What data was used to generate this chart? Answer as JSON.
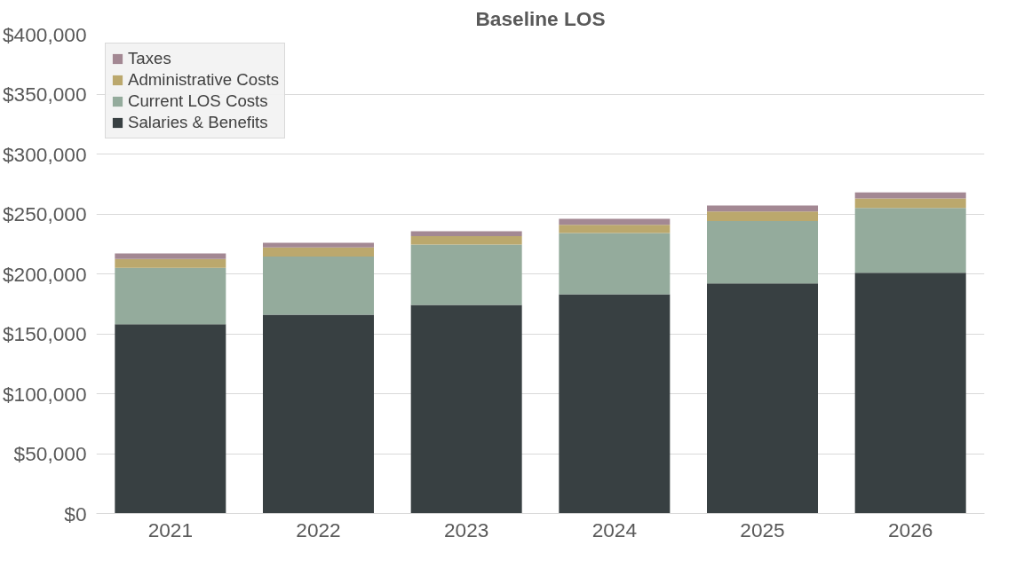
{
  "chart_data": {
    "type": "bar",
    "stacked": true,
    "title": "Baseline LOS",
    "categories": [
      "2021",
      "2022",
      "2023",
      "2024",
      "2025",
      "2026"
    ],
    "series": [
      {
        "name": "Salaries & Benefits",
        "color": "#384042",
        "values": [
          158000,
          166000,
          174000,
          183000,
          192000,
          201000
        ]
      },
      {
        "name": "Current LOS Costs",
        "color": "#94ab9c",
        "values": [
          47000,
          48500,
          50500,
          51000,
          52000,
          54000
        ]
      },
      {
        "name": "Administrative Costs",
        "color": "#bba86d",
        "values": [
          7500,
          7500,
          7000,
          7000,
          8000,
          8000
        ]
      },
      {
        "name": "Taxes",
        "color": "#a38893",
        "values": [
          4500,
          4000,
          4000,
          5000,
          5000,
          5000
        ]
      }
    ],
    "ylim": [
      0,
      400000
    ],
    "yticks": [
      {
        "value": 0,
        "label": "$0"
      },
      {
        "value": 50000,
        "label": "$50,000"
      },
      {
        "value": 100000,
        "label": "$100,000"
      },
      {
        "value": 150000,
        "label": "$150,000"
      },
      {
        "value": 200000,
        "label": "$200,000"
      },
      {
        "value": 250000,
        "label": "$250,000"
      },
      {
        "value": 300000,
        "label": "$300,000"
      },
      {
        "value": 350000,
        "label": "$350,000"
      },
      {
        "value": 400000,
        "label": "$400,000"
      }
    ],
    "grid": "y",
    "legend": "top left"
  }
}
